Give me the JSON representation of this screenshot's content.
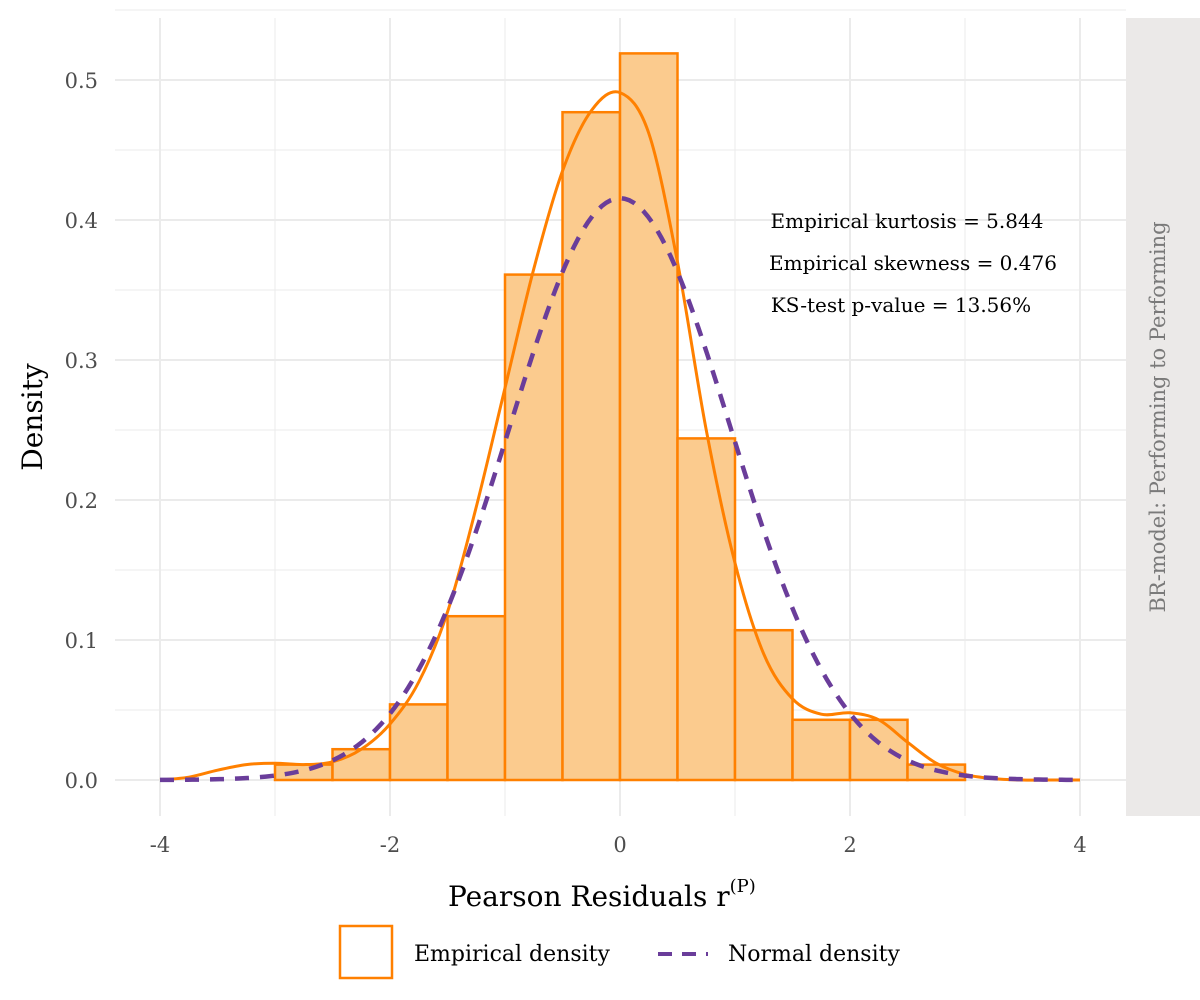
{
  "chart_data": {
    "type": "bar",
    "subtype": "histogram-with-density",
    "title": "",
    "xlabel": "Pearson Residuals r",
    "xlabel_superscript": "(P)",
    "ylabel": "Density",
    "strip_label": "BR-model: Performing to Performing",
    "xlim": [
      -4,
      4
    ],
    "ylim": [
      0,
      0.52
    ],
    "x_ticks": [
      -4,
      -2,
      0,
      2,
      4
    ],
    "x_tick_labels": [
      "-4",
      "-2",
      "0",
      "2",
      "4"
    ],
    "y_ticks": [
      0,
      0.1,
      0.2,
      0.3,
      0.4,
      0.5
    ],
    "y_tick_labels": [
      "0.0",
      "0.1",
      "0.2",
      "0.3",
      "0.4",
      "0.5"
    ],
    "grid": true,
    "histogram": {
      "bin_width": 0.5,
      "bin_starts": [
        -3.0,
        -2.5,
        -2.0,
        -1.5,
        -1.0,
        -0.5,
        0.0,
        0.5,
        1.0,
        1.5,
        2.0,
        2.5
      ],
      "values": [
        0.011,
        0.022,
        0.054,
        0.117,
        0.361,
        0.477,
        0.519,
        0.244,
        0.107,
        0.043,
        0.043,
        0.011
      ],
      "fill": "#fbcb8e",
      "stroke": "#ff8000"
    },
    "series": [
      {
        "name": "Empirical density",
        "style": "solid",
        "color": "#ff8000",
        "x": [
          -4.0,
          -3.75,
          -3.5,
          -3.25,
          -3.0,
          -2.75,
          -2.5,
          -2.25,
          -2.0,
          -1.75,
          -1.5,
          -1.25,
          -1.0,
          -0.75,
          -0.5,
          -0.25,
          0.0,
          0.25,
          0.5,
          0.75,
          1.0,
          1.25,
          1.5,
          1.75,
          2.0,
          2.25,
          2.5,
          2.75,
          3.0,
          3.25,
          3.5,
          3.75,
          4.0
        ],
        "y": [
          0.0,
          0.002,
          0.007,
          0.011,
          0.012,
          0.011,
          0.013,
          0.022,
          0.04,
          0.07,
          0.12,
          0.195,
          0.28,
          0.365,
          0.435,
          0.478,
          0.491,
          0.462,
          0.37,
          0.25,
          0.155,
          0.09,
          0.058,
          0.047,
          0.048,
          0.043,
          0.027,
          0.012,
          0.004,
          0.001,
          0.0,
          0.0,
          0.0
        ]
      },
      {
        "name": "Normal density",
        "style": "dashed",
        "color": "#6a3d9a",
        "mean": 0.0,
        "sd": 0.96
      }
    ],
    "annotations": [
      "Empirical kurtosis = 5.844",
      "Empirical skewness = 0.476",
      "KS-test p-value = 13.56%"
    ],
    "legend": {
      "position": "bottom",
      "items": [
        "Empirical density",
        "Normal density"
      ]
    }
  }
}
